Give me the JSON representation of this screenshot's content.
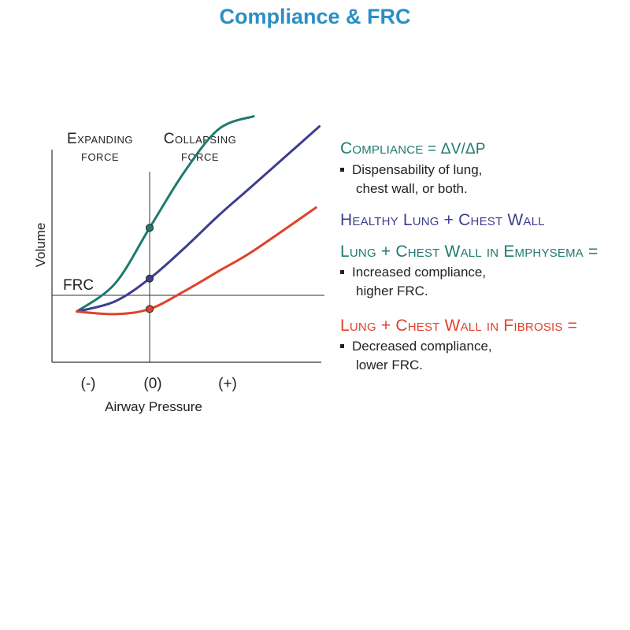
{
  "title": "Compliance & FRC",
  "chart": {
    "top_label_left": [
      "Expanding",
      "force"
    ],
    "top_label_right": [
      "Collapsing",
      "force"
    ],
    "ylabel": "Volume",
    "xlabel": "Airway Pressure",
    "frc_label": "FRC",
    "tick_labels": [
      "(-)",
      "(0)",
      "(+)"
    ]
  },
  "chart_data": {
    "type": "line",
    "xlabel": "Airway Pressure",
    "ylabel": "Volume",
    "x_ticks": [
      "(-)",
      "(0)",
      "(+)"
    ],
    "series": [
      {
        "color": "#1f7a6e",
        "x": [
          -1.05,
          -0.5,
          0,
          0.5,
          1.0,
          1.5
        ],
        "y": [
          0.2,
          0.31,
          0.53,
          0.75,
          0.92,
          0.97
        ]
      },
      {
        "color": "#3d3d8f",
        "x": [
          -1.05,
          -0.5,
          0,
          0.5,
          1.0,
          1.5,
          2.45
        ],
        "y": [
          0.2,
          0.24,
          0.33,
          0.45,
          0.58,
          0.7,
          0.93
        ]
      },
      {
        "color": "#e0412c",
        "x": [
          -1.05,
          -0.5,
          0,
          0.5,
          1.0,
          1.5,
          2.4
        ],
        "y": [
          0.2,
          0.19,
          0.21,
          0.28,
          0.36,
          0.44,
          0.61
        ]
      }
    ],
    "markers_at_x0": [
      0.53,
      0.33,
      0.21
    ],
    "frc_level": 0.33
  },
  "legend": {
    "compliance": {
      "heading": "Compliance",
      "formula": " = ΔV/ΔP",
      "bullet_lines": [
        "Dispensability of lung,",
        "chest wall, or both."
      ],
      "color": "#1f7a6e"
    },
    "healthy": {
      "heading": "Healthy Lung + Chest Wall",
      "color": "#3d3d8f"
    },
    "emphysema": {
      "heading": "Lung + Chest Wall in Emphysema =",
      "bullet_lines": [
        "Increased compliance,",
        "higher FRC."
      ],
      "color": "#1f7a6e"
    },
    "fibrosis": {
      "heading": "Lung + Chest Wall in Fibrosis =",
      "bullet_lines": [
        "Decreased compliance,",
        "lower FRC."
      ],
      "color": "#e0412c"
    }
  }
}
